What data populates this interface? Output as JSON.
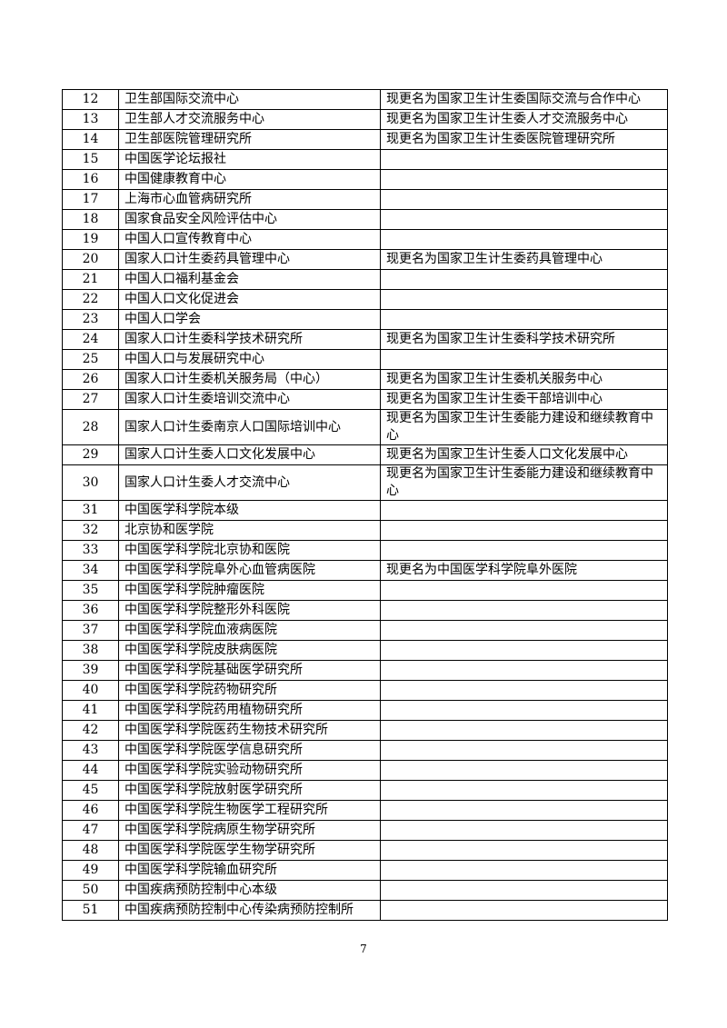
{
  "table": {
    "rows": [
      [
        "12",
        "卫生部国际交流中心",
        "现更名为国家卫生计生委国际交流与合作中心"
      ],
      [
        "13",
        "卫生部人才交流服务中心",
        "现更名为国家卫生计生委人才交流服务中心"
      ],
      [
        "14",
        "卫生部医院管理研究所",
        "现更名为国家卫生计生委医院管理研究所"
      ],
      [
        "15",
        "中国医学论坛报社"
      ],
      [
        "16",
        "中国健康教育中心"
      ],
      [
        "17",
        "上海市心血管病研究所"
      ],
      [
        "18",
        "国家食品安全风险评估中心"
      ],
      [
        "19",
        "中国人口宣传教育中心"
      ],
      [
        "20",
        "国家人口计生委药具管理中心",
        "现更名为国家卫生计生委药具管理中心"
      ],
      [
        "21",
        "中国人口福利基金会"
      ],
      [
        "22",
        "中国人口文化促进会"
      ],
      [
        "23",
        "中国人口学会"
      ],
      [
        "24",
        "国家人口计生委科学技术研究所",
        "现更名为国家卫生计生委科学技术研究所"
      ],
      [
        "25",
        "中国人口与发展研究中心"
      ],
      [
        "26",
        "国家人口计生委机关服务局（中心）",
        "现更名为国家卫生计生委机关服务中心"
      ],
      [
        "27",
        "国家人口计生委培训交流中心",
        "现更名为国家卫生计生委干部培训中心"
      ],
      [
        "28",
        "国家人口计生委南京人口国际培训中心",
        "现更名为国家卫生计生委能力建设和继续教育中心"
      ],
      [
        "29",
        "国家人口计生委人口文化发展中心",
        "现更名为国家卫生计生委人口文化发展中心"
      ],
      [
        "30",
        "国家人口计生委人才交流中心",
        "现更名为国家卫生计生委能力建设和继续教育中心"
      ],
      [
        "31",
        "中国医学科学院本级"
      ],
      [
        "32",
        "北京协和医学院"
      ],
      [
        "33",
        "中国医学科学院北京协和医院"
      ],
      [
        "34",
        "中国医学科学院阜外心血管病医院",
        "现更名为中国医学科学院阜外医院"
      ],
      [
        "35",
        "中国医学科学院肿瘤医院"
      ],
      [
        "36",
        "中国医学科学院整形外科医院"
      ],
      [
        "37",
        "中国医学科学院血液病医院"
      ],
      [
        "38",
        "中国医学科学院皮肤病医院"
      ],
      [
        "39",
        "中国医学科学院基础医学研究所"
      ],
      [
        "40",
        "中国医学科学院药物研究所"
      ],
      [
        "41",
        "中国医学科学院药用植物研究所"
      ],
      [
        "42",
        "中国医学科学院医药生物技术研究所"
      ],
      [
        "43",
        "中国医学科学院医学信息研究所"
      ],
      [
        "44",
        "中国医学科学院实验动物研究所"
      ],
      [
        "45",
        "中国医学科学院放射医学研究所"
      ],
      [
        "46",
        "中国医学科学院生物医学工程研究所"
      ],
      [
        "47",
        "中国医学科学院病原生物学研究所"
      ],
      [
        "48",
        "中国医学科学院医学生物学研究所"
      ],
      [
        "49",
        "中国医学科学院输血研究所"
      ],
      [
        "50",
        "中国疾病预防控制中心本级"
      ],
      [
        "51",
        "中国疾病预防控制中心传染病预防控制所"
      ]
    ]
  },
  "page_number": "7"
}
